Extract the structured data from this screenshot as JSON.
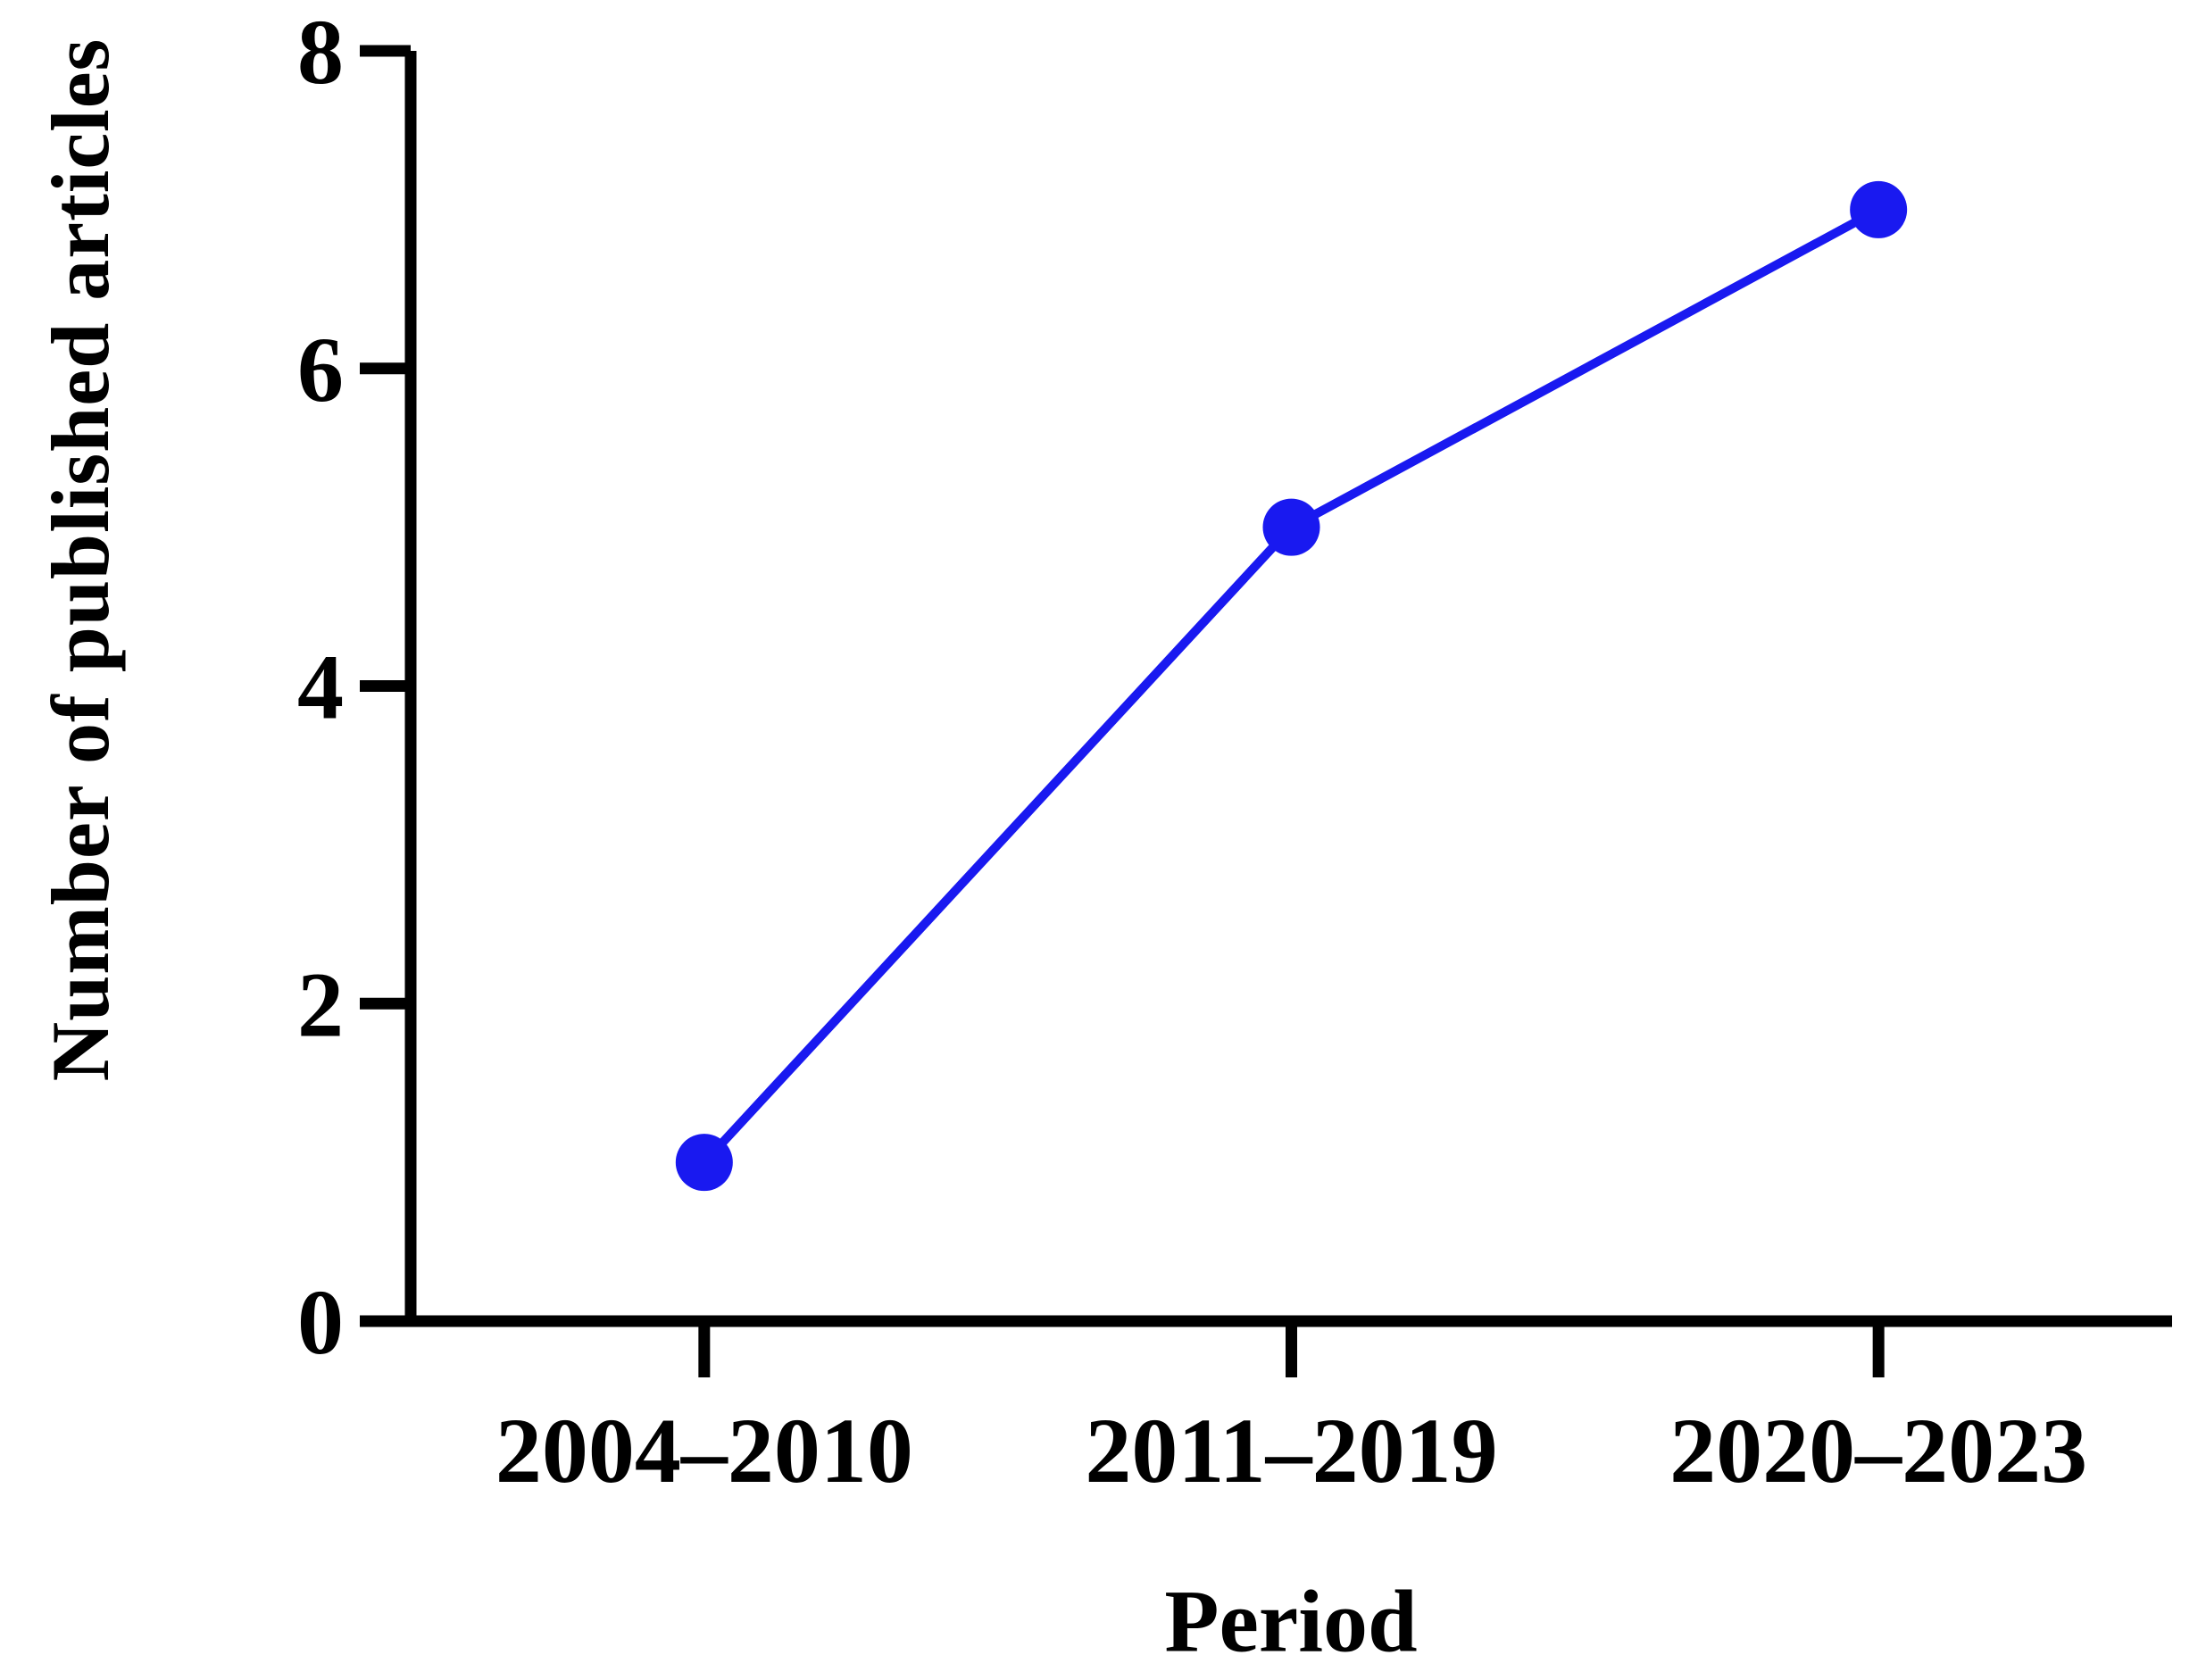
{
  "chart_data": {
    "type": "line",
    "title": "",
    "categories": [
      "2004–2010",
      "2011–2019",
      "2020–2023"
    ],
    "series": [
      {
        "name": "Number of published articles",
        "values": [
          1,
          5,
          7
        ]
      }
    ],
    "xlabel": "Period",
    "ylabel": "Number of published articles",
    "ylim": [
      0,
      8
    ],
    "yticks": [
      0,
      2,
      4,
      6,
      8
    ],
    "grid": false,
    "legend_position": "none",
    "marker": "circle",
    "colors": {
      "line": "#1919F0",
      "marker": "#1919F0",
      "axis": "#000000",
      "text": "#000000",
      "background": "#ffffff"
    }
  }
}
